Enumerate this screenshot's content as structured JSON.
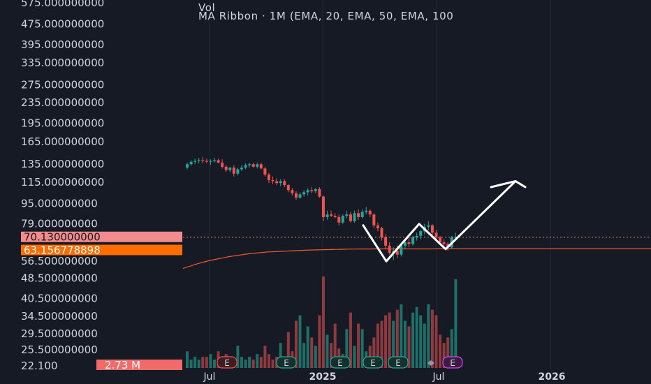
{
  "legend": {
    "vol_label": "Vol",
    "ribbon_label": "MA Ribbon · 1M (EMA, 20, EMA, 50, EMA, 100"
  },
  "colors": {
    "background": "#161a25",
    "up": "#26a69a",
    "down": "#ef5350",
    "vol_up": "#1f6e68",
    "vol_down": "#8e3a3f",
    "ema": "#f25a2a",
    "last_price_tag": "#f28b8e",
    "ema_tag": "#ff6d00",
    "volume_tag": "#f26b6b",
    "drawing": "#ffffff"
  },
  "price_axis": {
    "scale": "log",
    "ticks": [
      "575.000000000",
      "475.000000000",
      "395.000000000",
      "335.000000000",
      "275.000000000",
      "235.000000000",
      "195.000000000",
      "165.000000000",
      "135.000000000",
      "115.000000000",
      "95.000000000",
      "79.000000000",
      "70.130000000",
      "63.156778898",
      "56.500000000",
      "48.500000000",
      "40.500000000",
      "34.500000000",
      "29.500000000",
      "25.500000000",
      "22.100"
    ],
    "tag_last_price": "70.130000000",
    "tag_ema": "63.156778898",
    "tag_volume": "2.73 M"
  },
  "time_axis": {
    "labels": [
      "Jul",
      "2025",
      "Jul",
      "2026"
    ]
  },
  "earnings_markers": [
    "E",
    "E",
    "E",
    "E",
    "E",
    "E"
  ],
  "chart_data": {
    "type": "candlestick",
    "interval": "weekly",
    "y_scale": "log",
    "ylim": [
      22.1,
      575
    ],
    "candles": [
      {
        "o": 131,
        "h": 137,
        "l": 129,
        "c": 135
      },
      {
        "o": 135,
        "h": 140,
        "l": 133,
        "c": 138
      },
      {
        "o": 138,
        "h": 142,
        "l": 135,
        "c": 139
      },
      {
        "o": 139,
        "h": 143,
        "l": 136,
        "c": 140
      },
      {
        "o": 140,
        "h": 144,
        "l": 136,
        "c": 139
      },
      {
        "o": 139,
        "h": 142,
        "l": 136,
        "c": 138
      },
      {
        "o": 138,
        "h": 141,
        "l": 134,
        "c": 139
      },
      {
        "o": 139,
        "h": 143,
        "l": 137,
        "c": 140
      },
      {
        "o": 140,
        "h": 142,
        "l": 136,
        "c": 137
      },
      {
        "o": 137,
        "h": 141,
        "l": 130,
        "c": 132
      },
      {
        "o": 132,
        "h": 134,
        "l": 126,
        "c": 128
      },
      {
        "o": 128,
        "h": 132,
        "l": 126,
        "c": 131
      },
      {
        "o": 131,
        "h": 134,
        "l": 121,
        "c": 124
      },
      {
        "o": 124,
        "h": 131,
        "l": 122,
        "c": 129
      },
      {
        "o": 129,
        "h": 134,
        "l": 127,
        "c": 131
      },
      {
        "o": 131,
        "h": 136,
        "l": 129,
        "c": 134
      },
      {
        "o": 134,
        "h": 137,
        "l": 131,
        "c": 135
      },
      {
        "o": 135,
        "h": 137,
        "l": 131,
        "c": 132
      },
      {
        "o": 132,
        "h": 137,
        "l": 130,
        "c": 135
      },
      {
        "o": 135,
        "h": 137,
        "l": 129,
        "c": 130
      },
      {
        "o": 130,
        "h": 132,
        "l": 121,
        "c": 123
      },
      {
        "o": 123,
        "h": 125,
        "l": 114,
        "c": 117
      },
      {
        "o": 117,
        "h": 121,
        "l": 113,
        "c": 116
      },
      {
        "o": 116,
        "h": 119,
        "l": 112,
        "c": 114
      },
      {
        "o": 114,
        "h": 118,
        "l": 111,
        "c": 116
      },
      {
        "o": 116,
        "h": 118,
        "l": 110,
        "c": 112
      },
      {
        "o": 112,
        "h": 113,
        "l": 105,
        "c": 107
      },
      {
        "o": 107,
        "h": 109,
        "l": 102,
        "c": 104
      },
      {
        "o": 104,
        "h": 106,
        "l": 98,
        "c": 100
      },
      {
        "o": 100,
        "h": 105,
        "l": 99,
        "c": 103
      },
      {
        "o": 103,
        "h": 107,
        "l": 101,
        "c": 105
      },
      {
        "o": 105,
        "h": 109,
        "l": 102,
        "c": 107
      },
      {
        "o": 107,
        "h": 110,
        "l": 104,
        "c": 106
      },
      {
        "o": 106,
        "h": 109,
        "l": 104,
        "c": 108
      },
      {
        "o": 108,
        "h": 110,
        "l": 100,
        "c": 101
      },
      {
        "o": 101,
        "h": 102,
        "l": 81,
        "c": 84
      },
      {
        "o": 84,
        "h": 89,
        "l": 82,
        "c": 86
      },
      {
        "o": 86,
        "h": 89,
        "l": 84,
        "c": 85
      },
      {
        "o": 85,
        "h": 87,
        "l": 83,
        "c": 84
      },
      {
        "o": 84,
        "h": 86,
        "l": 78,
        "c": 80
      },
      {
        "o": 80,
        "h": 86,
        "l": 79,
        "c": 85
      },
      {
        "o": 85,
        "h": 89,
        "l": 83,
        "c": 86
      },
      {
        "o": 86,
        "h": 88,
        "l": 80,
        "c": 81
      },
      {
        "o": 81,
        "h": 89,
        "l": 80,
        "c": 87
      },
      {
        "o": 87,
        "h": 90,
        "l": 82,
        "c": 84
      },
      {
        "o": 84,
        "h": 90,
        "l": 83,
        "c": 88
      },
      {
        "o": 88,
        "h": 92,
        "l": 86,
        "c": 89
      },
      {
        "o": 89,
        "h": 90,
        "l": 84,
        "c": 86
      },
      {
        "o": 86,
        "h": 87,
        "l": 76,
        "c": 78
      },
      {
        "o": 78,
        "h": 80,
        "l": 74,
        "c": 76
      },
      {
        "o": 76,
        "h": 77,
        "l": 68,
        "c": 70
      },
      {
        "o": 70,
        "h": 72,
        "l": 63,
        "c": 65
      },
      {
        "o": 65,
        "h": 67,
        "l": 60,
        "c": 61
      },
      {
        "o": 61,
        "h": 64,
        "l": 57,
        "c": 62
      },
      {
        "o": 62,
        "h": 65,
        "l": 58,
        "c": 60
      },
      {
        "o": 60,
        "h": 66,
        "l": 59,
        "c": 65
      },
      {
        "o": 65,
        "h": 69,
        "l": 63,
        "c": 67
      },
      {
        "o": 67,
        "h": 70,
        "l": 64,
        "c": 66
      },
      {
        "o": 66,
        "h": 71,
        "l": 65,
        "c": 70
      },
      {
        "o": 70,
        "h": 73,
        "l": 68,
        "c": 71
      },
      {
        "o": 71,
        "h": 75,
        "l": 69,
        "c": 74
      },
      {
        "o": 74,
        "h": 79,
        "l": 72,
        "c": 77
      },
      {
        "o": 77,
        "h": 81,
        "l": 75,
        "c": 78
      },
      {
        "o": 78,
        "h": 79,
        "l": 71,
        "c": 73
      },
      {
        "o": 73,
        "h": 75,
        "l": 69,
        "c": 70
      },
      {
        "o": 70,
        "h": 71,
        "l": 66,
        "c": 67
      },
      {
        "o": 67,
        "h": 69,
        "l": 65,
        "c": 66
      },
      {
        "o": 66,
        "h": 67,
        "l": 62,
        "c": 64
      },
      {
        "o": 64,
        "h": 71,
        "l": 63,
        "c": 70
      },
      {
        "o": 70,
        "h": 73,
        "l": 68,
        "c": 70.13
      }
    ],
    "volume": [
      6,
      3,
      4,
      3,
      4,
      4,
      5,
      3,
      6,
      4,
      5,
      3,
      3,
      8,
      4,
      3,
      4,
      3,
      5,
      4,
      8,
      5,
      3,
      4,
      9,
      4,
      13,
      6,
      17,
      19,
      9,
      15,
      11,
      8,
      19,
      33,
      12,
      9,
      16,
      7,
      5,
      14,
      20,
      8,
      16,
      14,
      6,
      8,
      11,
      16,
      17,
      19,
      20,
      17,
      21,
      23,
      17,
      15,
      20,
      22,
      19,
      16,
      23,
      21,
      19,
      12,
      9,
      11,
      14,
      32
    ],
    "ema_curve": [
      53,
      53.6,
      54.2,
      54.8,
      55.4,
      55.9,
      56.4,
      56.9,
      57.3,
      57.7,
      58.1,
      58.5,
      58.9,
      59.2,
      59.5,
      59.8,
      60.1,
      60.4,
      60.6,
      60.8,
      61,
      61.2,
      61.4,
      61.5,
      61.6,
      61.7,
      61.8,
      61.9,
      62,
      62.1,
      62.2,
      62.3,
      62.4,
      62.5,
      62.55,
      62.6,
      62.65,
      62.7,
      62.75,
      62.8,
      62.85,
      62.9,
      62.95,
      63,
      63.02,
      63.04,
      63.06,
      63.08,
      63.1,
      63.11,
      63.12,
      63.12,
      63.12,
      63.12,
      63.12,
      63.13,
      63.13,
      63.13,
      63.14,
      63.14,
      63.14,
      63.14,
      63.15,
      63.15,
      63.15,
      63.15,
      63.16,
      63.16,
      63.16,
      63.157
    ],
    "projection_path": [
      {
        "x": 0,
        "price": 78
      },
      {
        "x": 1,
        "price": 56.5
      },
      {
        "x": 2,
        "price": 79
      },
      {
        "x": 3,
        "price": 63
      },
      {
        "x": 4,
        "price": 116
      },
      {
        "x": 5,
        "price": 110
      }
    ]
  }
}
